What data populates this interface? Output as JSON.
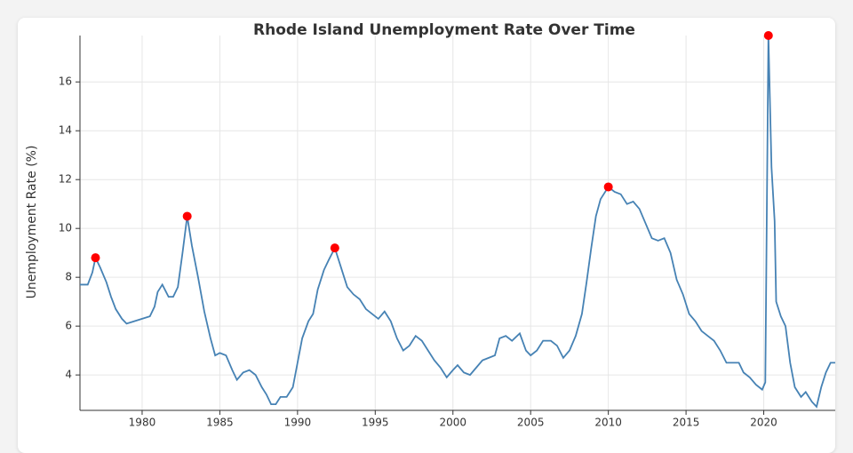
{
  "chart_data": {
    "type": "line",
    "title": "Rhode Island Unemployment Rate Over Time",
    "y_label": "Unemployment Rate (%)",
    "xlim": [
      1976,
      2024.6
    ],
    "xticks": [
      1980,
      1985,
      1990,
      1995,
      2000,
      2005,
      2010,
      2015,
      2020
    ],
    "ylim": [
      2.55,
      17.9
    ],
    "yticks": [
      4,
      6,
      8,
      10,
      12,
      14,
      16
    ],
    "grid": true,
    "line": {
      "color": "#4682b4",
      "x": [
        1976.0,
        1976.5,
        1976.8,
        1977.0,
        1977.3,
        1977.7,
        1978.0,
        1978.3,
        1978.7,
        1979.0,
        1979.5,
        1980.0,
        1980.5,
        1980.8,
        1981.0,
        1981.3,
        1981.7,
        1982.0,
        1982.3,
        1982.6,
        1982.9,
        1983.2,
        1983.6,
        1984.0,
        1984.4,
        1984.7,
        1985.0,
        1985.4,
        1985.8,
        1986.1,
        1986.5,
        1986.9,
        1987.3,
        1987.7,
        1988.0,
        1988.3,
        1988.6,
        1988.9,
        1989.3,
        1989.7,
        1990.0,
        1990.3,
        1990.7,
        1991.0,
        1991.3,
        1991.7,
        1992.0,
        1992.4,
        1992.8,
        1993.2,
        1993.6,
        1994.0,
        1994.4,
        1994.8,
        1995.2,
        1995.6,
        1996.0,
        1996.4,
        1996.8,
        1997.2,
        1997.6,
        1998.0,
        1998.4,
        1998.8,
        1999.2,
        1999.6,
        2000.0,
        2000.3,
        2000.7,
        2001.1,
        2001.5,
        2001.9,
        2002.3,
        2002.7,
        2003.0,
        2003.4,
        2003.8,
        2004.3,
        2004.7,
        2005.0,
        2005.4,
        2005.8,
        2006.3,
        2006.7,
        2007.1,
        2007.5,
        2007.9,
        2008.3,
        2008.6,
        2008.9,
        2009.2,
        2009.5,
        2010.0,
        2010.4,
        2010.8,
        2011.2,
        2011.6,
        2012.0,
        2012.4,
        2012.8,
        2013.2,
        2013.6,
        2014.0,
        2014.4,
        2014.8,
        2015.2,
        2015.6,
        2016.0,
        2016.4,
        2016.8,
        2017.2,
        2017.6,
        2018.0,
        2018.4,
        2018.7,
        2019.1,
        2019.5,
        2019.9,
        2020.1,
        2020.3,
        2020.5,
        2020.7,
        2020.8,
        2021.1,
        2021.4,
        2021.7,
        2022.0,
        2022.4,
        2022.7,
        2023.1,
        2023.4,
        2023.7,
        2024.0,
        2024.3,
        2024.6
      ],
      "values": [
        7.7,
        7.7,
        8.2,
        8.8,
        8.4,
        7.8,
        7.2,
        6.7,
        6.3,
        6.1,
        6.2,
        6.3,
        6.4,
        6.8,
        7.4,
        7.7,
        7.2,
        7.2,
        7.6,
        9.0,
        10.5,
        9.3,
        8.0,
        6.6,
        5.5,
        4.8,
        4.9,
        4.8,
        4.2,
        3.8,
        4.1,
        4.2,
        4.0,
        3.5,
        3.2,
        2.8,
        2.8,
        3.1,
        3.1,
        3.5,
        4.5,
        5.5,
        6.2,
        6.5,
        7.5,
        8.3,
        8.7,
        9.2,
        8.4,
        7.6,
        7.3,
        7.1,
        6.7,
        6.5,
        6.3,
        6.6,
        6.2,
        5.5,
        5.0,
        5.2,
        5.6,
        5.4,
        5.0,
        4.6,
        4.3,
        3.9,
        4.2,
        4.4,
        4.1,
        4.0,
        4.3,
        4.6,
        4.7,
        4.8,
        5.5,
        5.6,
        5.4,
        5.7,
        5.0,
        4.8,
        5.0,
        5.4,
        5.4,
        5.2,
        4.7,
        5.0,
        5.6,
        6.5,
        7.8,
        9.2,
        10.5,
        11.2,
        11.7,
        11.5,
        11.4,
        11.0,
        11.1,
        10.8,
        10.2,
        9.6,
        9.5,
        9.6,
        9.0,
        7.9,
        7.3,
        6.5,
        6.2,
        5.8,
        5.6,
        5.4,
        5.0,
        4.5,
        4.5,
        4.5,
        4.1,
        3.9,
        3.6,
        3.4,
        3.7,
        17.9,
        12.5,
        10.3,
        7.0,
        6.4,
        6.0,
        4.5,
        3.5,
        3.1,
        3.3,
        2.9,
        2.7,
        3.5,
        4.1,
        4.5,
        4.5
      ]
    },
    "peaks": {
      "color": "#ff0000",
      "x": [
        1977.0,
        1982.9,
        1992.4,
        2010.0,
        2020.3
      ],
      "values": [
        8.8,
        10.5,
        9.2,
        11.7,
        17.9
      ]
    }
  }
}
